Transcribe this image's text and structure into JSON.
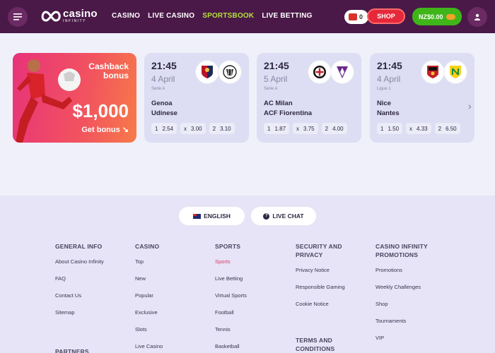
{
  "header": {
    "logo_text": "casino",
    "logo_subtext": "INFINITY",
    "nav": [
      {
        "label": "CASINO",
        "active": false
      },
      {
        "label": "LIVE CASINO",
        "active": false
      },
      {
        "label": "SPORTSBOOK",
        "active": true
      },
      {
        "label": "LIVE BETTING",
        "active": false
      }
    ],
    "bonus_count": "0",
    "shop_label": "SHOP",
    "balance": "NZ$0.00",
    "icons": {
      "menu": "hamburger-icon",
      "user": "user-icon",
      "gift": "gift-icon",
      "coins": "coins-icon"
    }
  },
  "promo": {
    "title": "Cashback bonus",
    "amount": "$1,000",
    "cta": "Get bonus ↘"
  },
  "matches": [
    {
      "time": "21:45",
      "date": "4 April",
      "league": "Serie A",
      "team1": "Genoa",
      "team2": "Udinese",
      "odds": [
        {
          "label": "1",
          "value": "2.54"
        },
        {
          "label": "x",
          "value": "3.00"
        },
        {
          "label": "2",
          "value": "3.10"
        }
      ]
    },
    {
      "time": "21:45",
      "date": "5 April",
      "league": "Serie A",
      "team1": "AC Milan",
      "team2": "ACF Fiorentina",
      "odds": [
        {
          "label": "1",
          "value": "1.87"
        },
        {
          "label": "x",
          "value": "3.75"
        },
        {
          "label": "2",
          "value": "4.00"
        }
      ]
    },
    {
      "time": "21:45",
      "date": "4 April",
      "league": "Ligue 1",
      "team1": "Nice",
      "team2": "Nantes",
      "odds": [
        {
          "label": "1",
          "value": "1.50"
        },
        {
          "label": "x",
          "value": "4.33"
        },
        {
          "label": "2",
          "value": "6.50"
        }
      ]
    }
  ],
  "footer": {
    "language": "ENGLISH",
    "live_chat": "LIVE CHAT",
    "columns": [
      {
        "heading": "GENERAL INFO",
        "links": [
          "About Casino Infinity",
          "FAQ",
          "Contact Us",
          "Sitemap"
        ],
        "subheading": "PARTNERS"
      },
      {
        "heading": "CASINO",
        "links": [
          "Top",
          "New",
          "Popular",
          "Exclusive",
          "Slots",
          "Live Casino"
        ]
      },
      {
        "heading": "SPORTS",
        "links": [
          "Sports",
          "Live Betting",
          "Virtual Sports",
          "Football",
          "Tennis",
          "Basketball"
        ],
        "active_index": 0
      },
      {
        "heading": "SECURITY AND PRIVACY",
        "links": [
          "Privacy Notice",
          "Responsible Gaming",
          "Cookie Notice"
        ],
        "subheading": "TERMS AND CONDITIONS"
      },
      {
        "heading": "CASINO INFINITY PROMOTIONS",
        "links": [
          "Promotions",
          "Weekly Challenges",
          "Shop",
          "Tournaments",
          "VIP"
        ]
      }
    ]
  }
}
